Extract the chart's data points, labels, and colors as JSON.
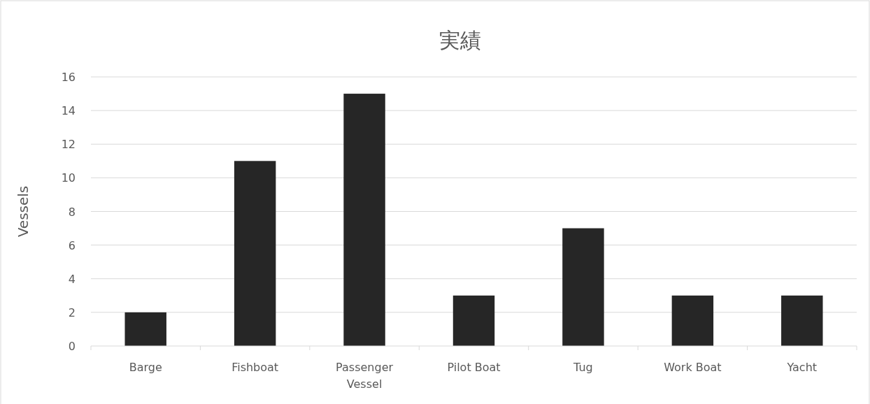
{
  "chart_data": {
    "type": "bar",
    "title": "実績",
    "ylabel": "Vessels",
    "categories": [
      "Barge",
      "Fishboat",
      "Passenger Vessel",
      "Pilot Boat",
      "Tug",
      "Work Boat",
      "Yacht"
    ],
    "values": [
      2,
      11,
      15,
      3,
      7,
      3,
      3
    ],
    "color": "#262626",
    "ylim": [
      0,
      16
    ],
    "yticks": [
      0,
      2,
      4,
      6,
      8,
      10,
      12,
      14,
      16
    ],
    "grid": "y"
  }
}
